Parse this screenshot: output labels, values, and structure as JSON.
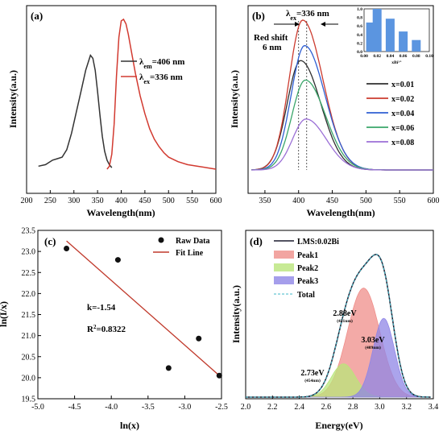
{
  "chart_data": [
    {
      "id": "a",
      "type": "line",
      "panel_label": "(a)",
      "xlabel": "Wavelength(nm)",
      "ylabel": "Intensity(a.u.)",
      "xlim": [
        200,
        600
      ],
      "xticks": [
        200,
        250,
        300,
        350,
        400,
        450,
        500,
        550,
        600
      ],
      "legend_position": "top-right",
      "series": [
        {
          "name_main": "λ",
          "name_sub": "em",
          "name_rest": "=406 nm",
          "color": "#333333",
          "x": [
            225,
            240,
            255,
            265,
            275,
            285,
            295,
            305,
            315,
            325,
            335,
            340,
            345,
            350,
            355,
            360,
            365,
            370,
            375,
            380
          ],
          "y": [
            0.02,
            0.03,
            0.06,
            0.07,
            0.08,
            0.13,
            0.24,
            0.38,
            0.52,
            0.66,
            0.76,
            0.74,
            0.66,
            0.52,
            0.36,
            0.22,
            0.12,
            0.06,
            0.03,
            0.01
          ]
        },
        {
          "name_main": "λ",
          "name_sub": "ex",
          "name_rest": "=336 nm",
          "color": "#d23a30",
          "x": [
            370,
            375,
            380,
            385,
            390,
            395,
            400,
            405,
            410,
            415,
            420,
            430,
            440,
            450,
            460,
            470,
            480,
            490,
            500,
            520,
            540,
            560,
            580,
            600
          ],
          "y": [
            0.0,
            0.02,
            0.1,
            0.3,
            0.62,
            0.88,
            0.99,
            1.0,
            0.97,
            0.9,
            0.81,
            0.64,
            0.49,
            0.37,
            0.27,
            0.2,
            0.15,
            0.11,
            0.08,
            0.05,
            0.03,
            0.02,
            0.01,
            0.0
          ]
        }
      ]
    },
    {
      "id": "b",
      "type": "line",
      "panel_label": "(b)",
      "xlabel": "Wavelength(nm)",
      "ylabel": "Intensity(a.u.)",
      "xlim": [
        325,
        600
      ],
      "xticks": [
        350,
        400,
        450,
        500,
        550,
        600
      ],
      "annotation_title": {
        "main": "λ",
        "sub": "ex",
        "rest": "=336 nm"
      },
      "annotation_shift": [
        "Red shift",
        "6 nm"
      ],
      "dashed_lines_x": [
        400,
        412
      ],
      "legend_position": "right",
      "series": [
        {
          "name": "x=0.01",
          "color": "#2f2f2f",
          "peak": 0.73,
          "center": 403
        },
        {
          "name": "x=0.02",
          "color": "#cc3b2f",
          "peak": 1.0,
          "center": 406
        },
        {
          "name": "x=0.04",
          "color": "#2f5fd3",
          "peak": 0.83,
          "center": 409
        },
        {
          "name": "x=0.06",
          "color": "#3aa66a",
          "peak": 0.6,
          "center": 410
        },
        {
          "name": "x=0.08",
          "color": "#9b6fd6",
          "peak": 0.34,
          "center": 411
        }
      ],
      "inset": {
        "type": "bar",
        "xlabel": "xBi³⁺",
        "xlim": [
          0.0,
          0.1
        ],
        "xticks": [
          "0.00",
          "0.02",
          "0.04",
          "0.06",
          "0.08",
          "0.10"
        ],
        "ylim": [
          0.0,
          1.0
        ],
        "yticks": [
          "0.0",
          "0.2",
          "0.4",
          "0.6",
          "0.8",
          "1.0"
        ],
        "x": [
          0.01,
          0.02,
          0.04,
          0.06,
          0.08
        ],
        "values": [
          0.68,
          1.0,
          0.77,
          0.47,
          0.27
        ],
        "color": "#5b95e0"
      }
    },
    {
      "id": "c",
      "type": "scatter",
      "panel_label": "(c)",
      "xlabel": "ln(x)",
      "ylabel": "ln(I/x)",
      "xlim": [
        -5.0,
        -2.5
      ],
      "ylim": [
        19.5,
        23.5
      ],
      "xticks": [
        "-5.0",
        "-4.5",
        "-4.0",
        "-3.5",
        "-3.0",
        "-2.5"
      ],
      "yticks": [
        "19.5",
        "20.0",
        "20.5",
        "21.0",
        "21.5",
        "22.0",
        "22.5",
        "23.0",
        "23.5"
      ],
      "legend_position": "top-right",
      "points_name": "Raw Data",
      "fit_name": "Fit Line",
      "fit_color": "#c0392b",
      "x": [
        -4.61,
        -3.91,
        -3.22,
        -2.81,
        -2.53
      ],
      "y": [
        23.07,
        22.8,
        20.23,
        20.93,
        20.05
      ],
      "fit": {
        "x": [
          -4.61,
          -2.53
        ],
        "y": [
          23.25,
          20.05
        ]
      },
      "annotations": {
        "k": "k=-1.54",
        "r2_base": "R",
        "r2_sup": "2",
        "r2_rest": "=0.8322"
      }
    },
    {
      "id": "d",
      "type": "area",
      "panel_label": "(d)",
      "xlabel": "Energy(eV)",
      "ylabel": "Intensity(a.u.)",
      "xlim": [
        2.0,
        3.4
      ],
      "xticks": [
        "2.0",
        "2.2",
        "2.4",
        "2.6",
        "2.8",
        "3.0",
        "3.2",
        "3.4"
      ],
      "legend_position": "top-left",
      "main_series": {
        "name": "LMS:0.02Bi",
        "color": "#1a1a2e"
      },
      "total": {
        "name": "Total",
        "color": "#3fb9c9"
      },
      "peaks": [
        {
          "name": "Peak1",
          "energy": "2.88eV",
          "wavelength": "(431nm)",
          "center": 2.88,
          "amp": 0.72,
          "sigma": 0.12,
          "color": "#ef8e8a"
        },
        {
          "name": "Peak2",
          "energy": "2.73eV",
          "wavelength": "(454nm)",
          "center": 2.73,
          "amp": 0.22,
          "sigma": 0.09,
          "color": "#b9e57a"
        },
        {
          "name": "Peak3",
          "energy": "3.03eV",
          "wavelength": "(409nm)",
          "center": 3.03,
          "amp": 0.52,
          "sigma": 0.08,
          "color": "#8f86e6"
        }
      ]
    }
  ]
}
